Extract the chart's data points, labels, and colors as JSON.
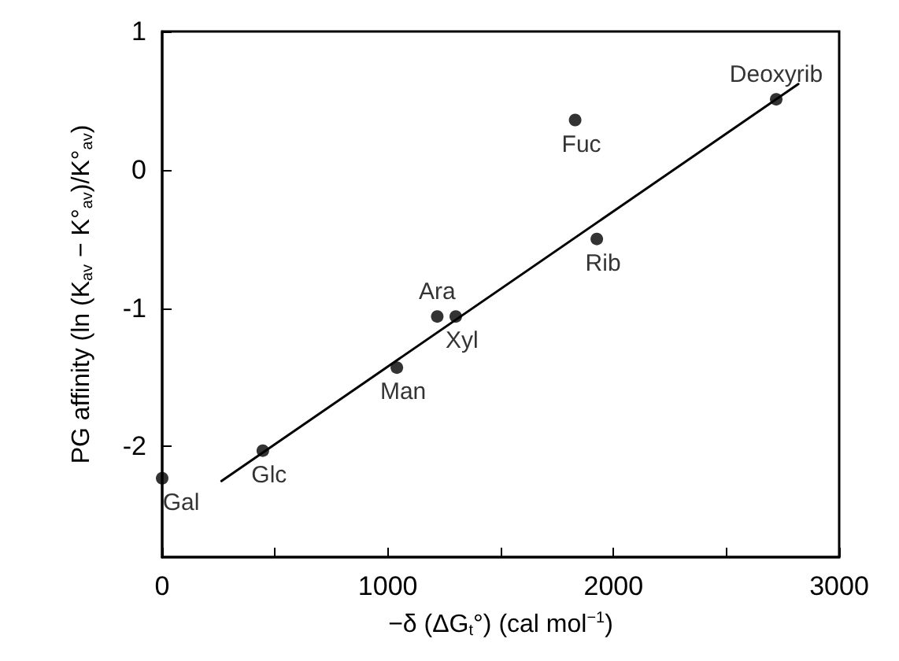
{
  "chart_data": {
    "type": "scatter",
    "xlabel": "−δ (ΔG$_{t}$°) (cal mol$^{−1}$)",
    "ylabel": "PG affinity (ln (K$_{av}$ − K°$_{av}$)/K°$_{av}$)",
    "xlim": [
      0,
      3000
    ],
    "ylim": [
      -2.8,
      1
    ],
    "xticks": [
      0,
      {
        "value": 500,
        "label": null
      },
      1000,
      {
        "value": 1500,
        "label": null
      },
      2000,
      {
        "value": 2500,
        "label": null
      },
      3000
    ],
    "yticks": [
      -2,
      -1,
      0,
      1
    ],
    "marker": "circle",
    "grid": false,
    "series": [
      {
        "color": "#000000",
        "x": [
          0,
          446,
          1040,
          1219,
          1301,
          1830,
          1926,
          2721
        ],
        "values": [
          -2.23,
          -2.03,
          -1.43,
          -1.06,
          -1.06,
          0.36,
          -0.5,
          0.51
        ]
      },
      {
        "type": "line",
        "color": "#000000",
        "x": [
          263,
          2819
        ],
        "values": [
          -2.25,
          0.62
        ],
        "marker": "none"
      }
    ],
    "annotations": [
      {
        "text": "Gal",
        "x": 0,
        "y": -2.23
      },
      {
        "text": "Glc",
        "x": 446,
        "y": -2.03
      },
      {
        "text": "Man",
        "x": 1040,
        "y": -1.43
      },
      {
        "text": "Ara",
        "x": 1219,
        "y": -1.06
      },
      {
        "text": "Xyl",
        "x": 1301,
        "y": -1.06
      },
      {
        "text": "Fuc",
        "x": 1830,
        "y": 0.36
      },
      {
        "text": "Rib",
        "x": 1926,
        "y": -0.5
      },
      {
        "text": "Deoxyrib",
        "x": 2721,
        "y": 0.51
      }
    ]
  }
}
